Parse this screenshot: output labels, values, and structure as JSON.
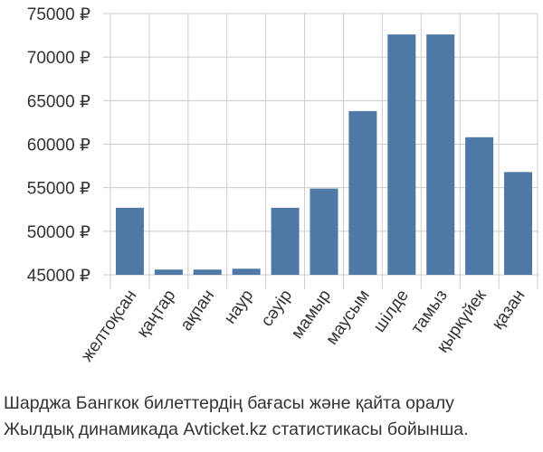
{
  "chart_data": {
    "type": "bar",
    "categories": [
      "желтоқсан",
      "қаңтар",
      "ақпан",
      "наур",
      "сәуір",
      "мамыр",
      "маусым",
      "шілде",
      "тамыз",
      "қыркүйек",
      "қазан"
    ],
    "values": [
      52700,
      45600,
      45600,
      45700,
      52700,
      54900,
      63800,
      72600,
      72600,
      60800,
      56800
    ],
    "yticks": [
      "45000 ₽",
      "50000 ₽",
      "55000 ₽",
      "60000 ₽",
      "65000 ₽",
      "70000 ₽",
      "75000 ₽"
    ],
    "ytick_values": [
      45000,
      50000,
      55000,
      60000,
      65000,
      70000,
      75000
    ],
    "ylim": [
      45000,
      75000
    ],
    "grid": true,
    "bar_color": "#4e79a7",
    "grid_color": "#cccccc"
  },
  "caption": {
    "line1": "Шарджа Бангкок билеттердің бағасы және қайта оралу",
    "line2": "Жылдық динамикада Avticket.kz статистикасы бойынша."
  }
}
